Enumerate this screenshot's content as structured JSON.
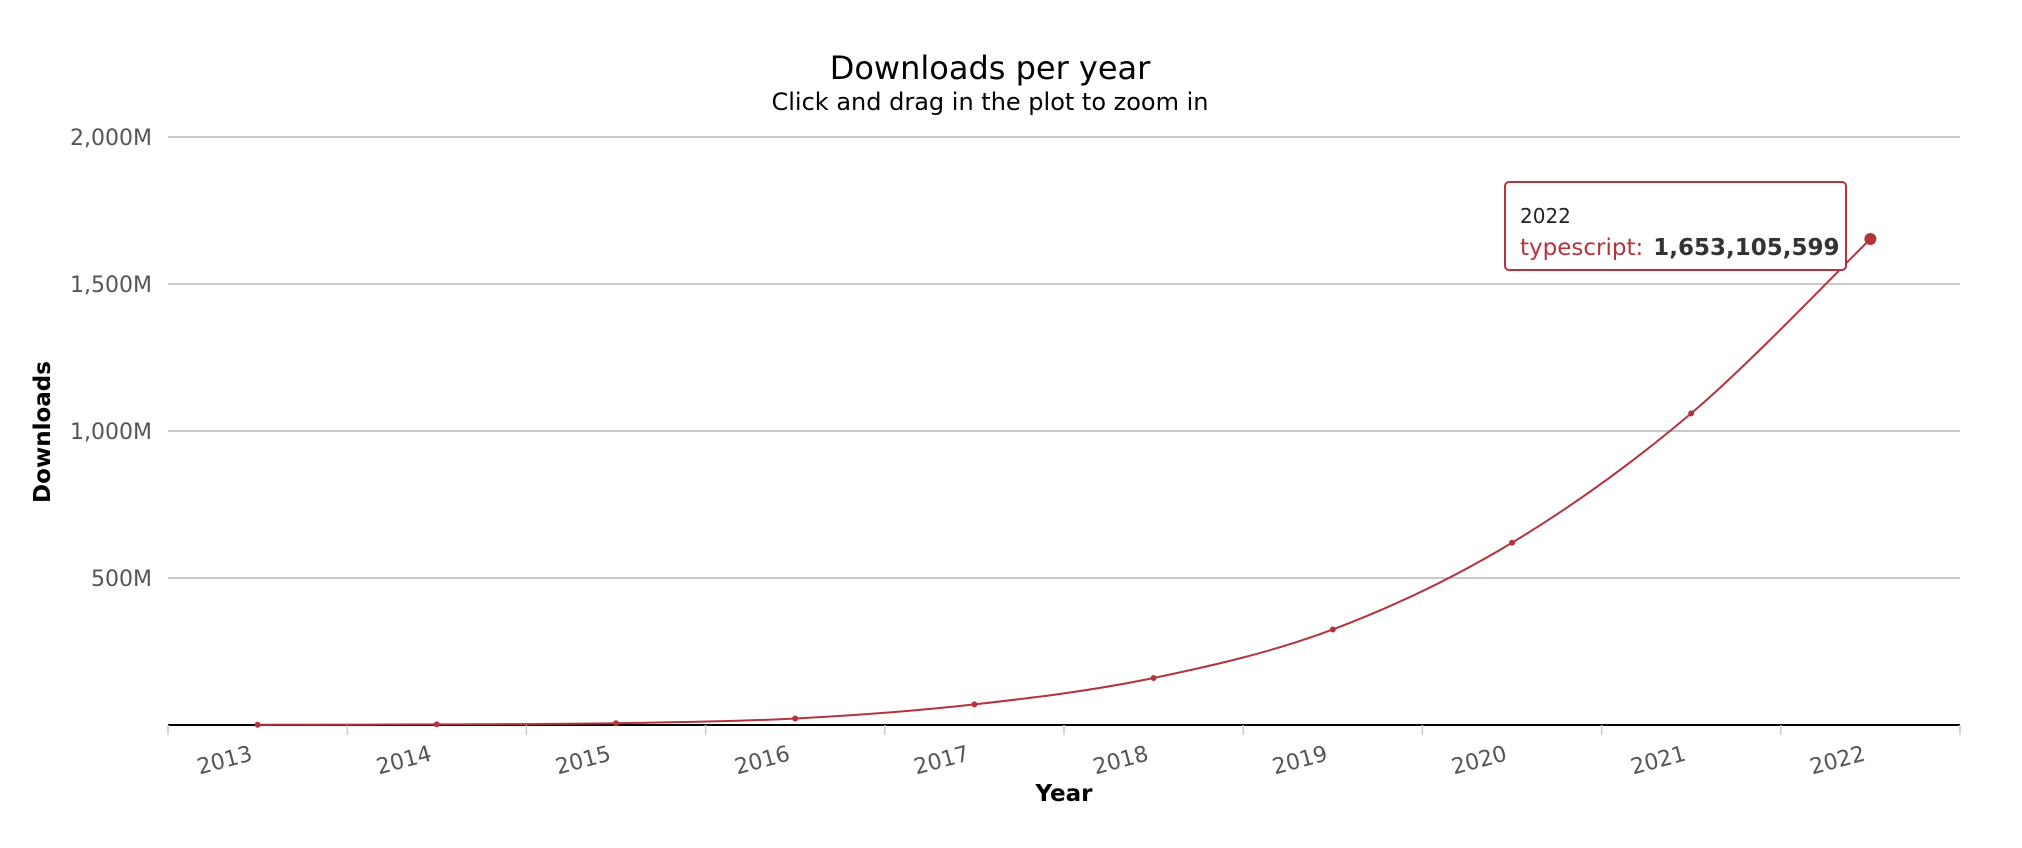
{
  "chart_data": {
    "type": "line",
    "title": "Downloads per year",
    "subtitle": "Click and drag in the plot to zoom in",
    "xlabel": "Year",
    "ylabel": "Downloads",
    "categories": [
      "2013",
      "2014",
      "2015",
      "2016",
      "2017",
      "2018",
      "2019",
      "2020",
      "2021",
      "2022"
    ],
    "series": [
      {
        "name": "typescript",
        "color": "#b3333f",
        "values": [
          1000000,
          2000000,
          6000000,
          22000000,
          70000000,
          160000000,
          325000000,
          620000000,
          1060000000,
          1653105599
        ]
      }
    ],
    "ylim": [
      0,
      2000000000
    ],
    "yticks": [
      {
        "value": 500000000,
        "label": "500M"
      },
      {
        "value": 1000000000,
        "label": "1,000M"
      },
      {
        "value": 1500000000,
        "label": "1,500M"
      },
      {
        "value": 2000000000,
        "label": "2,000M"
      }
    ],
    "grid": true,
    "tooltip": {
      "category": "2022",
      "series_label": "typescript",
      "separator": ":",
      "value_label": "1,653,105,599",
      "border_color": "#b3333f"
    }
  }
}
